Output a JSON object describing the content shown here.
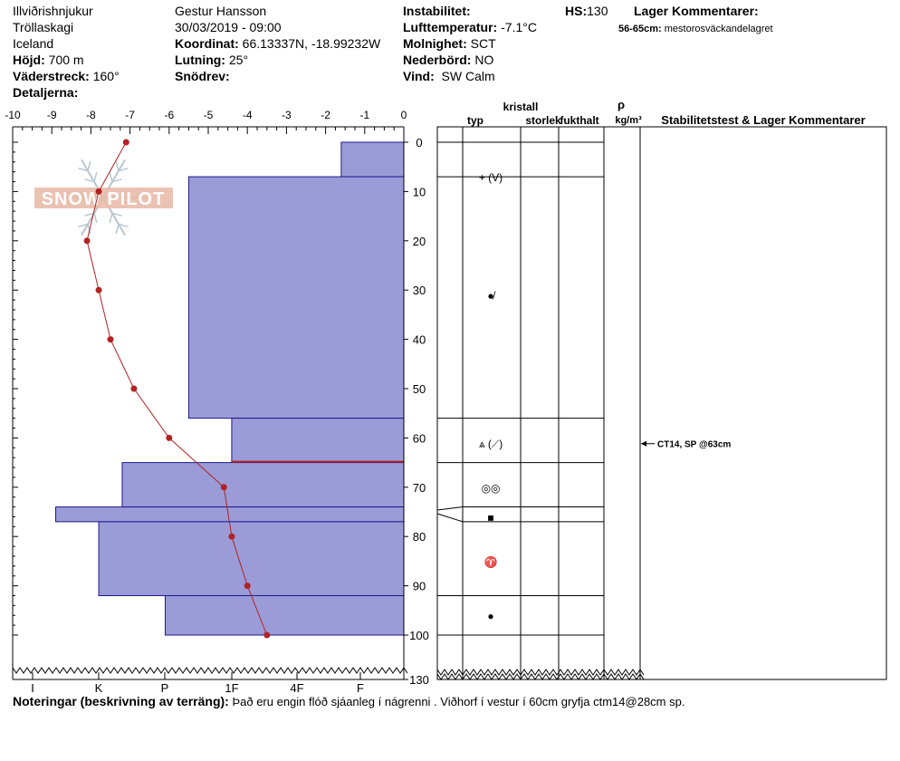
{
  "header": {
    "location": "Illviðrishnjukur",
    "region": "Tröllaskagi",
    "country": "Iceland",
    "hojd_label": "Höjd:",
    "hojd_value": "700 m",
    "vaderstreck_label": "Väderstreck:",
    "vaderstreck_value": "160°",
    "detaljerna_label": "Detaljerna:",
    "observer": "Gestur Hansson",
    "datetime": "30/03/2019 - 09:00",
    "koordinat_label": "Koordinat:",
    "koordinat_value": "66.13337N, -18.99232W",
    "lutning_label": "Lutning:",
    "lutning_value": "25°",
    "snodrev_label": "Snödrev:",
    "instabilitet_label": "Instabilitet:",
    "lufttemp_label": "Lufttemperatur:",
    "lufttemp_value": "-7.1°C",
    "molnighet_label": "Molnighet:",
    "molnighet_value": "SCT",
    "nederbord_label": "Nederbörd:",
    "nederbord_value": "NO",
    "vind_label": "Vind:",
    "vind_value": "SW Calm",
    "hs_label": "HS:",
    "hs_value": "130",
    "lager_label": "Lager Kommentarer:",
    "lager_range": "56-65cm:",
    "lager_text": "mestorosväckandelagret"
  },
  "logo": {
    "text": "SNOW PILOT"
  },
  "table_headers": {
    "kristall": "kristall",
    "typ": "typ",
    "storlek": "storlek",
    "fukthalt": "fukthalt",
    "rho": "ρ",
    "rho_unit": "kg/m³",
    "stability": "Stabilitetstest & Lager Kommentarer"
  },
  "crystal_symbols": [
    {
      "depth": 7,
      "symbol": "+ (V)"
    },
    {
      "depth": 31,
      "symbol": "●̸"
    },
    {
      "depth": 61,
      "symbol": "⩓ (⟋)"
    },
    {
      "depth": 70,
      "symbol": "◎◎"
    },
    {
      "depth": 76,
      "symbol": "■"
    },
    {
      "depth": 85,
      "symbol": "♈"
    },
    {
      "depth": 96,
      "symbol": "●"
    }
  ],
  "stability_test": {
    "depth": 63,
    "text": "CT14, SP @63cm"
  },
  "notes": {
    "label": "Noteringar (beskrivning av terräng):",
    "text": "Það eru engin flóð sjáanleg í nágrenni . Viðhorf í vestur í 60cm gryfja ctm14@28cm sp."
  },
  "colors": {
    "layer_fill": "#9b9bd7",
    "layer_stroke": "#1a1a8c",
    "temp_line": "#b22222"
  },
  "chart_data": {
    "type": "snow_profile",
    "depth_axis": {
      "ticks": [
        0,
        10,
        20,
        30,
        40,
        50,
        60,
        70,
        80,
        90,
        100,
        130
      ],
      "range": [
        0,
        130
      ]
    },
    "temperature_axis": {
      "ticks": [
        -10,
        -9,
        -8,
        -7,
        -6,
        -5,
        -4,
        -3,
        -2,
        -1,
        0
      ],
      "range": [
        -10,
        0
      ]
    },
    "hardness_labels": [
      "I",
      "K",
      "P",
      "1F",
      "4F",
      "F"
    ],
    "hand_hardness_layers": [
      {
        "top": 0,
        "bottom": 7,
        "temp_equiv": -1.6
      },
      {
        "top": 7,
        "bottom": 56,
        "temp_equiv": -5.5
      },
      {
        "top": 56,
        "bottom": 65,
        "temp_equiv": -4.4
      },
      {
        "top": 65,
        "bottom": 74,
        "temp_equiv": -7.2
      },
      {
        "top": 74,
        "bottom": 77,
        "temp_equiv": -8.9
      },
      {
        "top": 77,
        "bottom": 92,
        "temp_equiv": -7.8
      },
      {
        "top": 92,
        "bottom": 100,
        "temp_equiv": -6.1
      }
    ],
    "layer_boundaries": [
      0,
      7,
      56,
      65,
      74,
      77,
      92,
      100
    ],
    "temperature_profile": [
      {
        "depth": 0,
        "temp": -7.1
      },
      {
        "depth": 10,
        "temp": -7.8
      },
      {
        "depth": 20,
        "temp": -8.1
      },
      {
        "depth": 30,
        "temp": -7.8
      },
      {
        "depth": 40,
        "temp": -7.5
      },
      {
        "depth": 50,
        "temp": -6.9
      },
      {
        "depth": 60,
        "temp": -6.0
      },
      {
        "depth": 70,
        "temp": -4.6
      },
      {
        "depth": 80,
        "temp": -4.4
      },
      {
        "depth": 90,
        "temp": -4.0
      },
      {
        "depth": 100,
        "temp": -3.5
      }
    ]
  }
}
